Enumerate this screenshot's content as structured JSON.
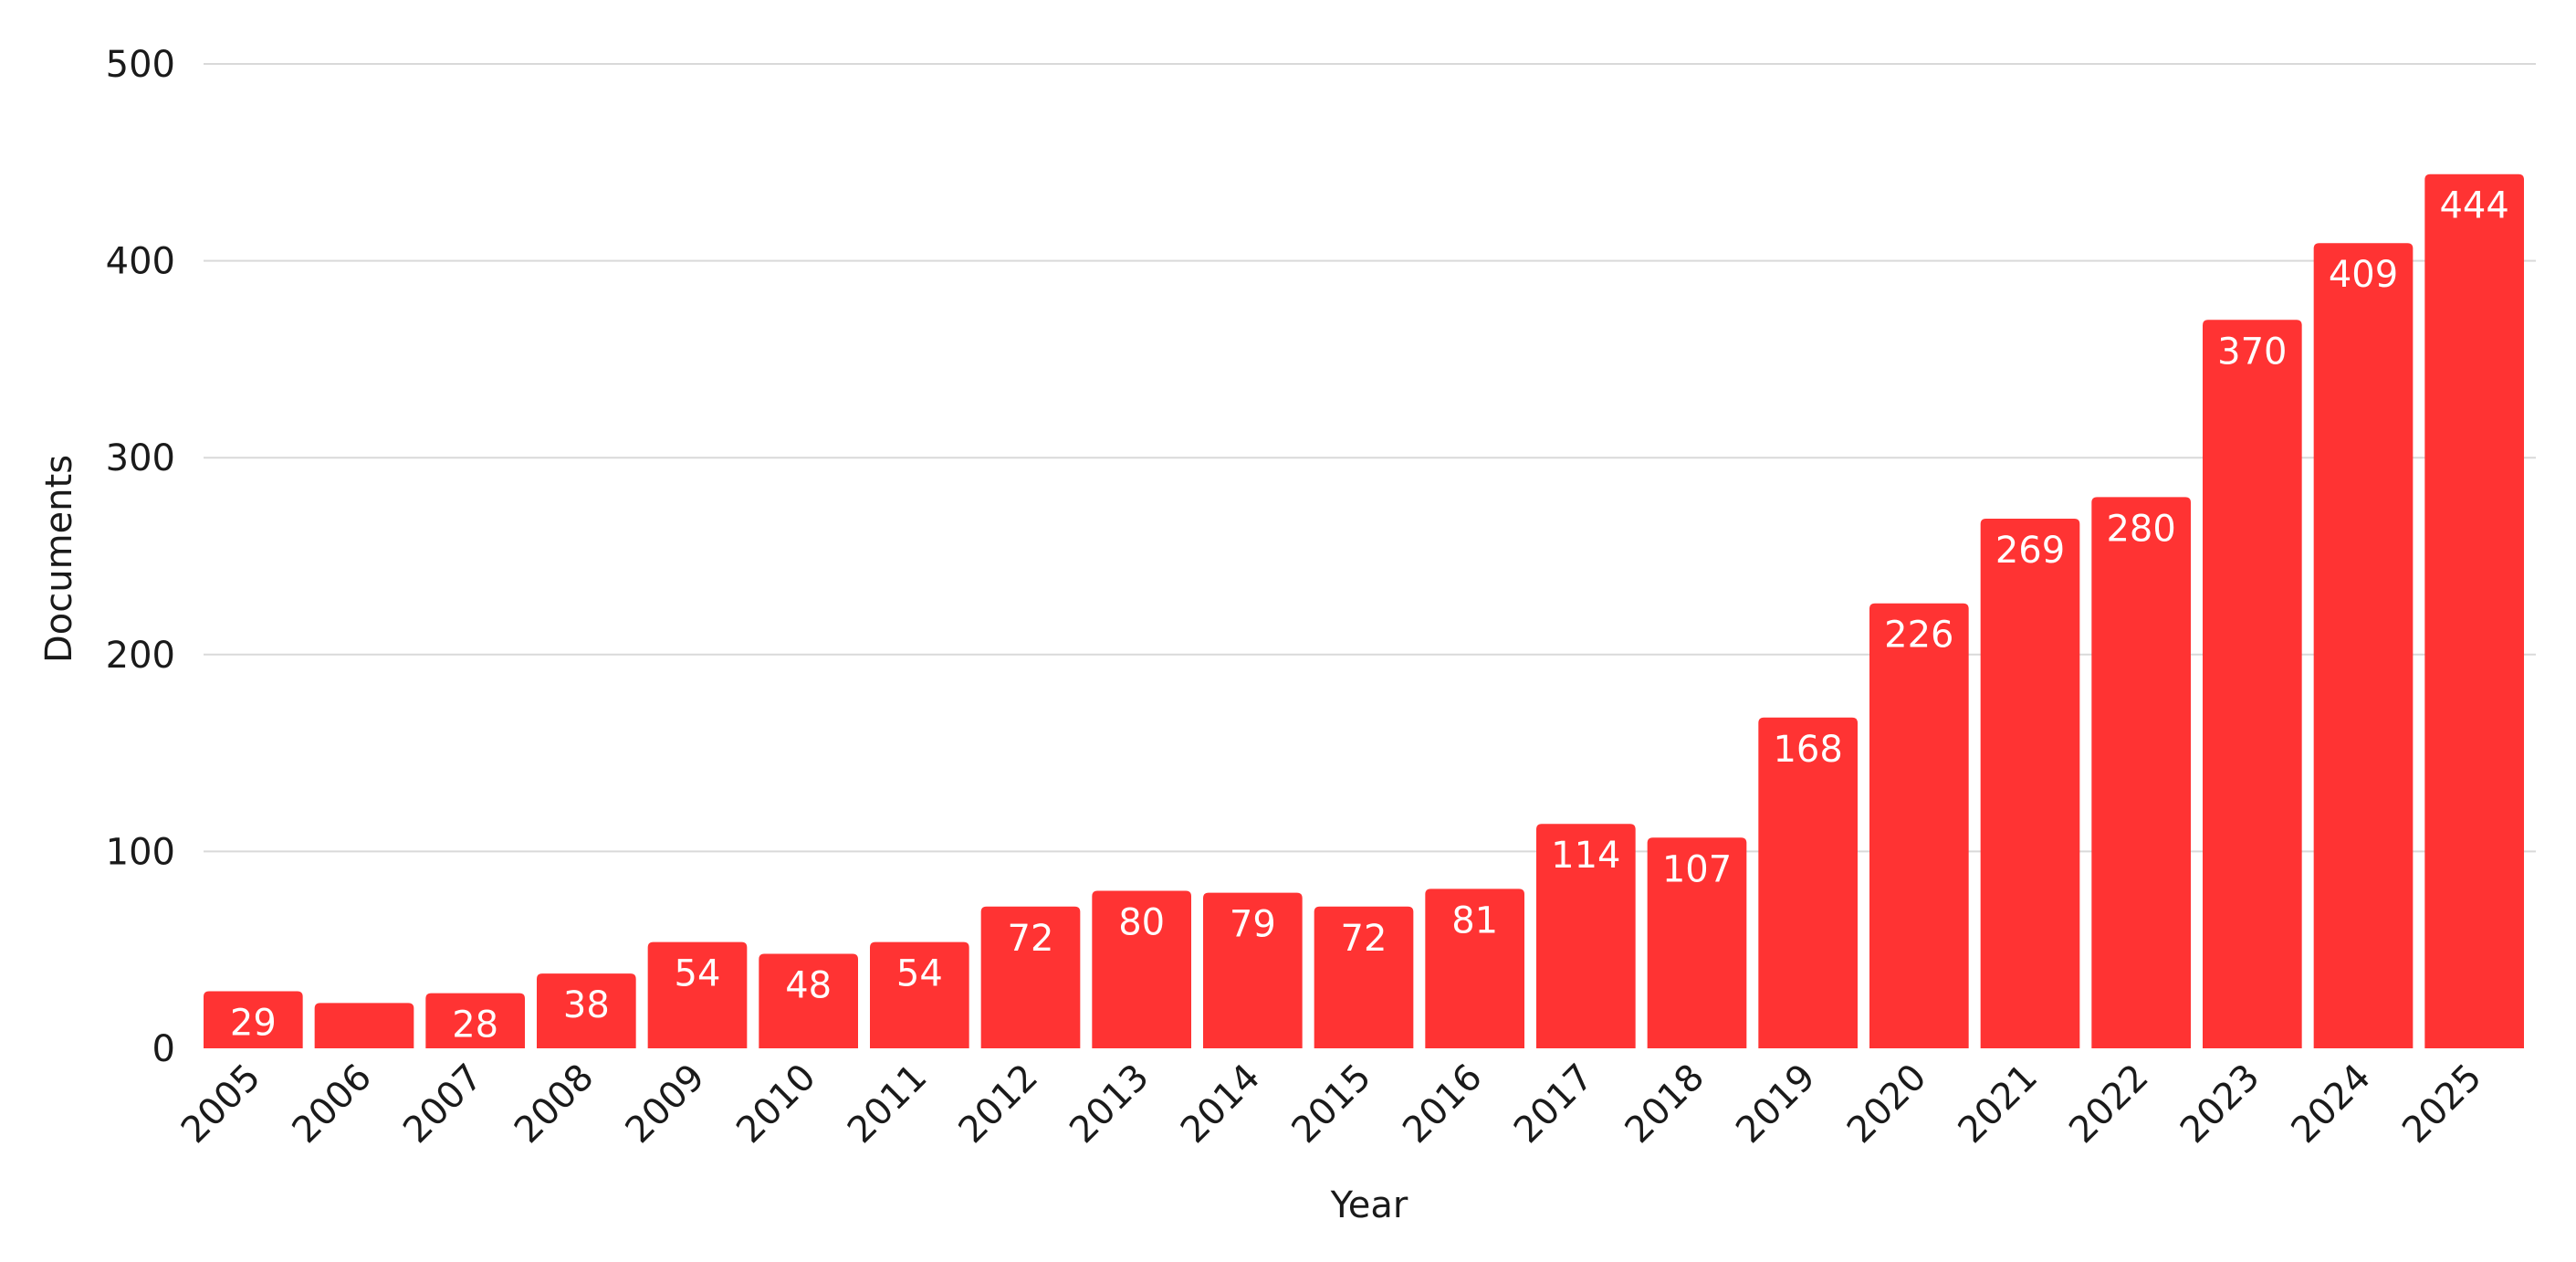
{
  "chart_data": {
    "type": "bar",
    "title": "",
    "xlabel": "Year",
    "ylabel": "Documents",
    "categories": [
      "2005",
      "2006",
      "2007",
      "2008",
      "2009",
      "2010",
      "2011",
      "2012",
      "2013",
      "2014",
      "2015",
      "2016",
      "2017",
      "2018",
      "2019",
      "2020",
      "2021",
      "2022",
      "2023",
      "2024",
      "2025"
    ],
    "values": [
      29,
      23,
      28,
      38,
      54,
      48,
      54,
      72,
      80,
      79,
      72,
      81,
      114,
      107,
      168,
      226,
      269,
      280,
      370,
      409,
      444
    ],
    "data_labels": [
      "29",
      "",
      "28",
      "38",
      "54",
      "48",
      "54",
      "72",
      "80",
      "79",
      "72",
      "81",
      "114",
      "107",
      "168",
      "226",
      "269",
      "280",
      "370",
      "409",
      "444"
    ],
    "ylim": [
      0,
      500
    ],
    "yticks": [
      0,
      100,
      200,
      300,
      400,
      500
    ],
    "grid": true,
    "legend": "none",
    "bar_color": "#ff3333",
    "grid_color": "#d9d9d9",
    "text_color": "#1a1a1a",
    "label_color": "#ffffff"
  }
}
